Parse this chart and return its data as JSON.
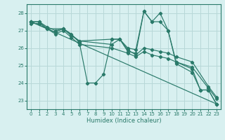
{
  "xlabel": "Humidex (Indice chaleur)",
  "bg_color": "#d8f0f0",
  "grid_color": "#b8d8d8",
  "line_color": "#2a7a6a",
  "xlim": [
    -0.5,
    23.5
  ],
  "ylim": [
    22.5,
    28.5
  ],
  "yticks": [
    23,
    24,
    25,
    26,
    27,
    28
  ],
  "xticks": [
    0,
    1,
    2,
    3,
    4,
    5,
    6,
    7,
    8,
    9,
    10,
    11,
    12,
    13,
    14,
    15,
    16,
    17,
    18,
    19,
    20,
    21,
    22,
    23
  ],
  "series": [
    {
      "x": [
        0,
        1,
        2,
        3,
        4,
        5,
        6,
        7,
        8,
        9,
        10,
        11,
        12,
        13,
        14,
        15,
        16,
        17,
        18,
        20,
        21,
        22,
        23
      ],
      "y": [
        27.5,
        27.5,
        27.2,
        27.0,
        27.1,
        26.8,
        26.3,
        24.0,
        24.0,
        24.5,
        26.5,
        26.5,
        25.8,
        25.7,
        28.1,
        27.5,
        27.5,
        27.0,
        25.1,
        24.6,
        23.6,
        23.6,
        22.8
      ]
    },
    {
      "x": [
        0,
        1,
        2,
        3,
        4,
        5,
        6,
        10,
        11,
        12,
        13,
        14,
        15,
        16,
        17,
        18,
        20,
        22,
        23
      ],
      "y": [
        27.5,
        27.5,
        27.1,
        26.9,
        27.1,
        26.7,
        26.4,
        26.2,
        26.5,
        25.9,
        25.6,
        26.0,
        25.9,
        25.8,
        25.7,
        25.5,
        25.2,
        23.8,
        23.2
      ]
    },
    {
      "x": [
        0,
        1,
        2,
        3,
        4,
        5,
        6,
        10,
        12,
        13,
        14,
        15,
        16,
        17,
        18,
        20,
        22,
        23
      ],
      "y": [
        27.4,
        27.4,
        27.1,
        26.8,
        27.0,
        26.6,
        26.2,
        26.0,
        25.7,
        25.5,
        25.8,
        25.6,
        25.5,
        25.4,
        25.2,
        24.9,
        23.7,
        23.1
      ]
    },
    {
      "x": [
        0,
        23
      ],
      "y": [
        27.5,
        22.8
      ]
    },
    {
      "x": [
        0,
        2,
        4,
        6,
        10,
        11,
        12,
        13,
        14,
        15,
        16,
        17,
        18,
        20,
        21,
        22,
        23
      ],
      "y": [
        27.5,
        27.1,
        27.1,
        26.4,
        26.5,
        26.5,
        26.0,
        25.9,
        28.1,
        27.5,
        28.0,
        27.0,
        25.2,
        24.8,
        23.6,
        23.6,
        22.8
      ]
    }
  ]
}
